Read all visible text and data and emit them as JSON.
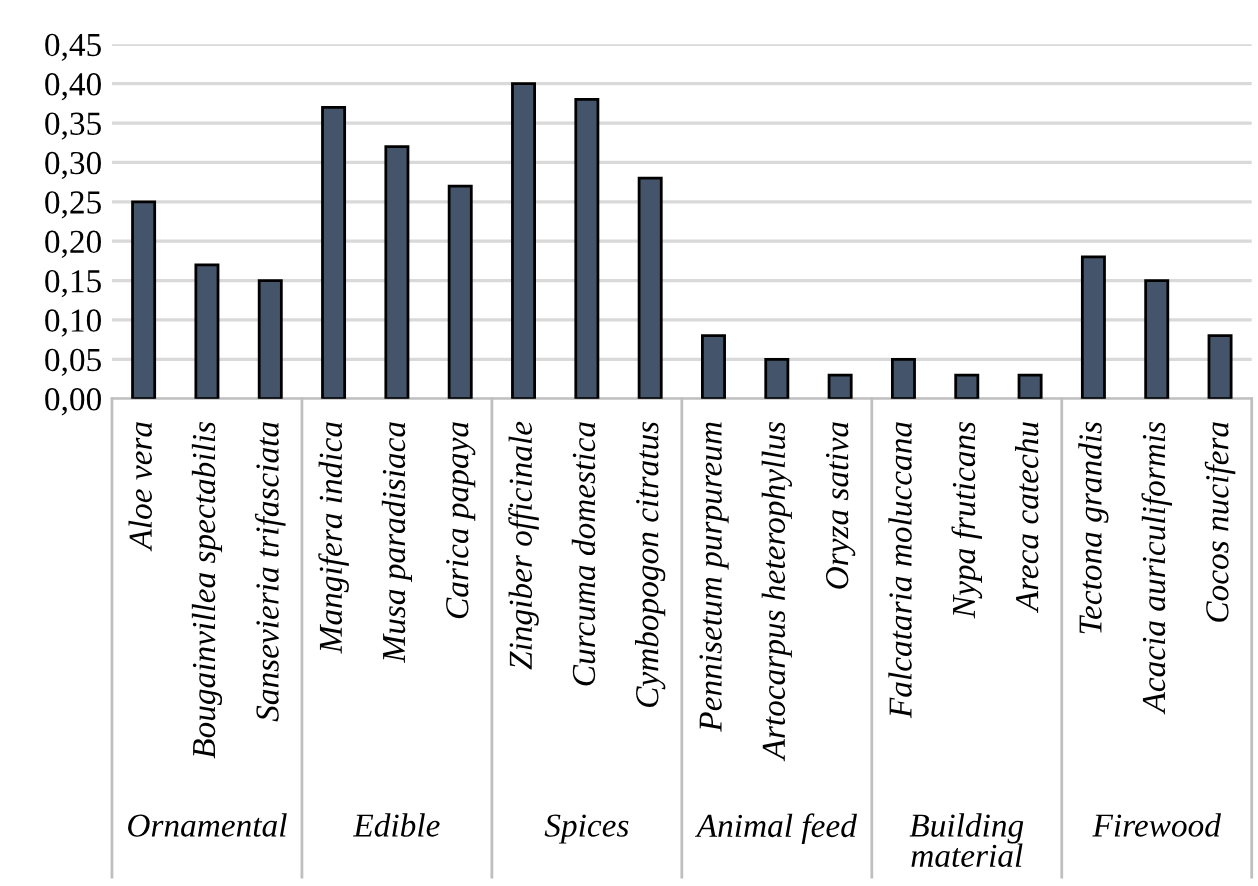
{
  "chart_data": {
    "type": "bar",
    "categories": [
      "Aloe vera",
      "Bougainvillea spectabilis",
      "Sansevieria trifasciata",
      "Mangifera indica",
      "Musa paradisiaca",
      "Carica papaya",
      "Zingiber officinale",
      "Curcuma domestica",
      "Cymbopogon citratus",
      "Pennisetum purpureum",
      "Artocarpus heterophyllus",
      "Oryza sativa",
      "Falcataria moluccana",
      "Nypa fruticans",
      "Areca catechu",
      "Tectona grandis",
      "Acacia auriculiformis",
      "Cocos nucifera"
    ],
    "values": [
      0.25,
      0.17,
      0.15,
      0.37,
      0.32,
      0.27,
      0.4,
      0.38,
      0.28,
      0.08,
      0.05,
      0.03,
      0.05,
      0.03,
      0.03,
      0.18,
      0.15,
      0.08
    ],
    "color": "#44546a",
    "annotations": [
      "Ornamental",
      "Edible",
      "Spices",
      "Animal feed",
      "Building material",
      "Firewood"
    ],
    "ylim": [
      0,
      0.45
    ],
    "yticks": [
      {
        "value": 0,
        "label": "0,00"
      },
      {
        "value": 0.05,
        "label": "0,05"
      },
      {
        "value": 0.1,
        "label": "0,10"
      },
      {
        "value": 0.15,
        "label": "0,15"
      },
      {
        "value": 0.2,
        "label": "0,20"
      },
      {
        "value": 0.25,
        "label": "0,25"
      },
      {
        "value": 0.3,
        "label": "0,30"
      },
      {
        "value": 0.35,
        "label": "0,35"
      },
      {
        "value": 0.4,
        "label": "0,40"
      },
      {
        "value": 0.45,
        "label": "0,45"
      }
    ],
    "grid": "y",
    "legend": false
  }
}
